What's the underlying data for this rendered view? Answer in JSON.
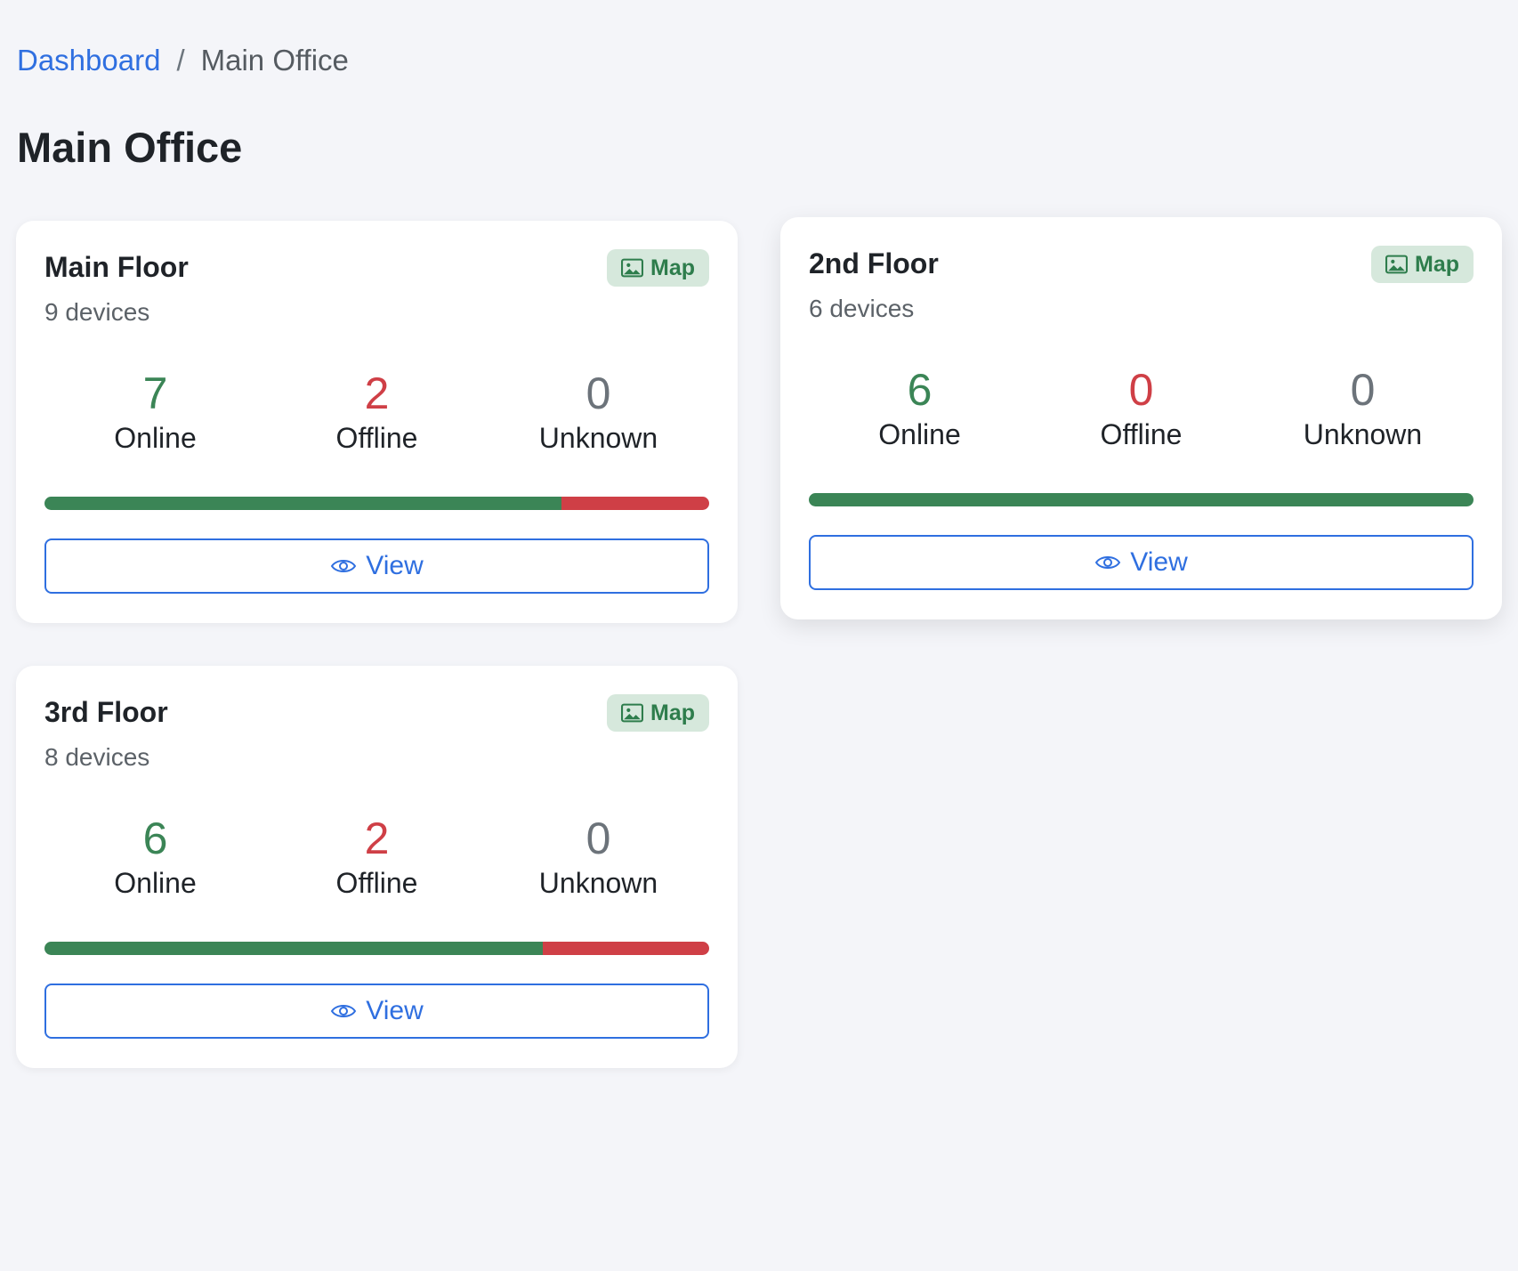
{
  "breadcrumb": {
    "home": "Dashboard",
    "separator": "/",
    "current": "Main Office"
  },
  "page_title": "Main Office",
  "colors": {
    "online": "#3b8556",
    "offline": "#cf3f46",
    "unknown": "#6c737a",
    "accent": "#2f6fe0",
    "badge_bg": "#d6e8dc"
  },
  "floors": [
    {
      "name": "Main Floor",
      "devices_label": "9 devices",
      "map_label": "Map",
      "online": 7,
      "offline": 2,
      "unknown": 0,
      "online_label": "Online",
      "offline_label": "Offline",
      "unknown_label": "Unknown",
      "view_label": "View"
    },
    {
      "name": "2nd Floor",
      "devices_label": "6 devices",
      "map_label": "Map",
      "online": 6,
      "offline": 0,
      "unknown": 0,
      "online_label": "Online",
      "offline_label": "Offline",
      "unknown_label": "Unknown",
      "view_label": "View"
    },
    {
      "name": "3rd Floor",
      "devices_label": "8 devices",
      "map_label": "Map",
      "online": 6,
      "offline": 2,
      "unknown": 0,
      "online_label": "Online",
      "offline_label": "Offline",
      "unknown_label": "Unknown",
      "view_label": "View"
    }
  ]
}
